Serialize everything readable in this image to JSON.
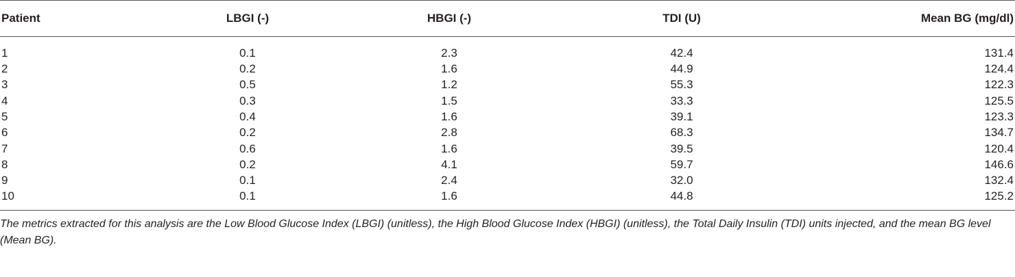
{
  "table": {
    "headers": [
      "Patient",
      "LBGI (-)",
      "HBGI (-)",
      "TDI (U)",
      "Mean BG (mg/dl)"
    ],
    "rows": [
      [
        "1",
        "0.1",
        "2.3",
        "42.4",
        "131.4"
      ],
      [
        "2",
        "0.2",
        "1.6",
        "44.9",
        "124.4"
      ],
      [
        "3",
        "0.5",
        "1.2",
        "55.3",
        "122.3"
      ],
      [
        "4",
        "0.3",
        "1.5",
        "33.3",
        "125.5"
      ],
      [
        "5",
        "0.4",
        "1.6",
        "39.1",
        "123.3"
      ],
      [
        "6",
        "0.2",
        "2.8",
        "68.3",
        "134.7"
      ],
      [
        "7",
        "0.6",
        "1.6",
        "39.5",
        "120.4"
      ],
      [
        "8",
        "0.2",
        "4.1",
        "59.7",
        "146.6"
      ],
      [
        "9",
        "0.1",
        "2.4",
        "32.0",
        "132.4"
      ],
      [
        "10",
        "0.1",
        "1.6",
        "44.8",
        "125.2"
      ]
    ]
  },
  "caption": "The metrics extracted for this analysis are the Low Blood Glucose Index (LBGI) (unitless), the High Blood Glucose Index (HBGI) (unitless), the Total Daily Insulin (TDI) units injected, and the mean BG level (Mean BG)."
}
